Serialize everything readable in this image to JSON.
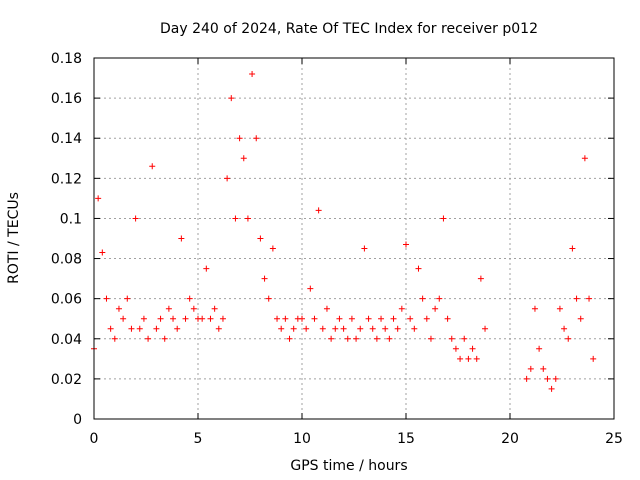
{
  "chart_data": {
    "type": "scatter",
    "title": "Day 240 of 2024, Rate Of TEC Index for receiver p012",
    "xlabel": "GPS time / hours",
    "ylabel": "ROTI / TECUs",
    "xlim": [
      0,
      25
    ],
    "ylim": [
      0,
      0.18
    ],
    "x_ticks": [
      "0",
      "5",
      "10",
      "15",
      "20",
      "25"
    ],
    "y_ticks": [
      "0",
      "0.02",
      "0.04",
      "0.06",
      "0.08",
      "0.1",
      "0.12",
      "0.14",
      "0.16",
      "0.18"
    ],
    "grid": true,
    "marker": "+",
    "color": "#ff0000",
    "series": [
      {
        "x": [
          0.0,
          0.2,
          0.4,
          0.6,
          0.8,
          1.0,
          1.2,
          1.4,
          1.6,
          1.8,
          2.0,
          2.2,
          2.4,
          2.6,
          2.8,
          3.0,
          3.2,
          3.4,
          3.6,
          3.8,
          4.0,
          4.2,
          4.4,
          4.6,
          4.8,
          5.0,
          5.2,
          5.4,
          5.6,
          5.8,
          6.0,
          6.2,
          6.4,
          6.6,
          6.8,
          7.0,
          7.2,
          7.4,
          7.6,
          7.8,
          8.0,
          8.2,
          8.4,
          8.6,
          8.8,
          9.0,
          9.2,
          9.4,
          9.6,
          9.8,
          10.0,
          10.2,
          10.4,
          10.6,
          10.8,
          11.0,
          11.2,
          11.4,
          11.6,
          11.8,
          12.0,
          12.2,
          12.4,
          12.6,
          12.8,
          13.0,
          13.2,
          13.4,
          13.6,
          13.8,
          14.0,
          14.2,
          14.4,
          14.6,
          14.8,
          15.0,
          15.2,
          15.4,
          15.6,
          15.8,
          16.0,
          16.2,
          16.4,
          16.6,
          16.8,
          17.0,
          17.2,
          17.4,
          17.6,
          17.8,
          18.0,
          18.2,
          18.4,
          18.6,
          18.8,
          20.8,
          21.0,
          21.2,
          21.4,
          21.6,
          21.8,
          22.0,
          22.2,
          22.4,
          22.6,
          22.8,
          23.0,
          23.2,
          23.4,
          23.6,
          23.8,
          24.0
        ],
        "y": [
          0.035,
          0.11,
          0.083,
          0.06,
          0.045,
          0.04,
          0.055,
          0.05,
          0.06,
          0.045,
          0.1,
          0.045,
          0.05,
          0.04,
          0.126,
          0.045,
          0.05,
          0.04,
          0.055,
          0.05,
          0.045,
          0.09,
          0.05,
          0.06,
          0.055,
          0.05,
          0.05,
          0.075,
          0.05,
          0.055,
          0.045,
          0.05,
          0.12,
          0.16,
          0.1,
          0.14,
          0.13,
          0.1,
          0.172,
          0.14,
          0.09,
          0.07,
          0.06,
          0.085,
          0.05,
          0.045,
          0.05,
          0.04,
          0.045,
          0.05,
          0.05,
          0.045,
          0.065,
          0.05,
          0.104,
          0.045,
          0.055,
          0.04,
          0.045,
          0.05,
          0.045,
          0.04,
          0.05,
          0.04,
          0.045,
          0.085,
          0.05,
          0.045,
          0.04,
          0.05,
          0.045,
          0.04,
          0.05,
          0.045,
          0.055,
          0.087,
          0.05,
          0.045,
          0.075,
          0.06,
          0.05,
          0.04,
          0.055,
          0.06,
          0.1,
          0.05,
          0.04,
          0.035,
          0.03,
          0.04,
          0.03,
          0.035,
          0.03,
          0.07,
          0.045,
          0.02,
          0.025,
          0.055,
          0.035,
          0.025,
          0.02,
          0.015,
          0.02,
          0.055,
          0.045,
          0.04,
          0.085,
          0.06,
          0.05,
          0.13,
          0.06,
          0.03
        ]
      }
    ]
  }
}
